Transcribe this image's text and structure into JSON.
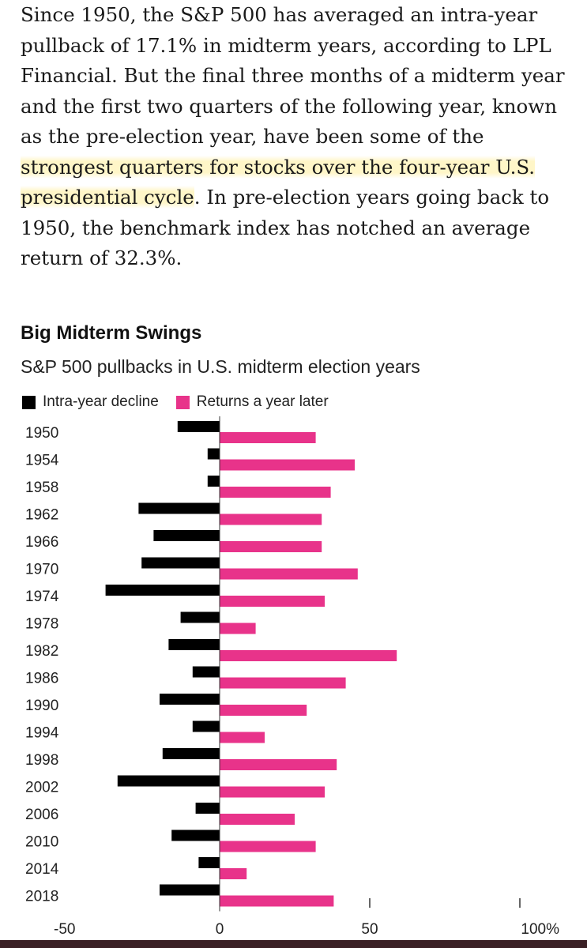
{
  "article": {
    "before_highlight": "Since 1950, the S&P 500 has averaged an intra-year pullback of 17.1% in midterm years, according to LPL Financial. But the final three months of a midterm year and the first two quarters of the following year, known as the pre-election year, have been some of the ",
    "highlight": "strongest quarters for stocks over the four-year U.S. presidential cycle",
    "after_highlight": ". In pre-election years going back to 1950, the benchmark index has notched an average return of 32.3%."
  },
  "colors": {
    "decline": "#000000",
    "returns": "#e8338a",
    "highlight": "#fff4be"
  },
  "chart_data": {
    "type": "bar",
    "orientation": "horizontal",
    "title": "Big Midterm Swings",
    "subtitle": "S&P 500 pullbacks in U.S. midterm election years",
    "categories": [
      "1950",
      "1954",
      "1958",
      "1962",
      "1966",
      "1970",
      "1974",
      "1978",
      "1982",
      "1986",
      "1990",
      "1994",
      "1998",
      "2002",
      "2006",
      "2010",
      "2014",
      "2018"
    ],
    "series": [
      {
        "name": "Intra-year decline",
        "values": [
          -14,
          -4,
          -4,
          -27,
          -22,
          -26,
          -38,
          -13,
          -17,
          -9,
          -20,
          -9,
          -19,
          -34,
          -8,
          -16,
          -7,
          -20
        ]
      },
      {
        "name": "Returns a year later",
        "values": [
          32,
          45,
          37,
          34,
          34,
          46,
          35,
          12,
          59,
          42,
          29,
          15,
          39,
          35,
          25,
          32,
          9,
          38
        ]
      }
    ],
    "xlim": [
      -50,
      100
    ],
    "xticks": [
      {
        "value": -50,
        "label": "-50"
      },
      {
        "value": 0,
        "label": "0"
      },
      {
        "value": 50,
        "label": "50"
      },
      {
        "value": 100,
        "label": "100%"
      }
    ],
    "legend": "top-left"
  }
}
